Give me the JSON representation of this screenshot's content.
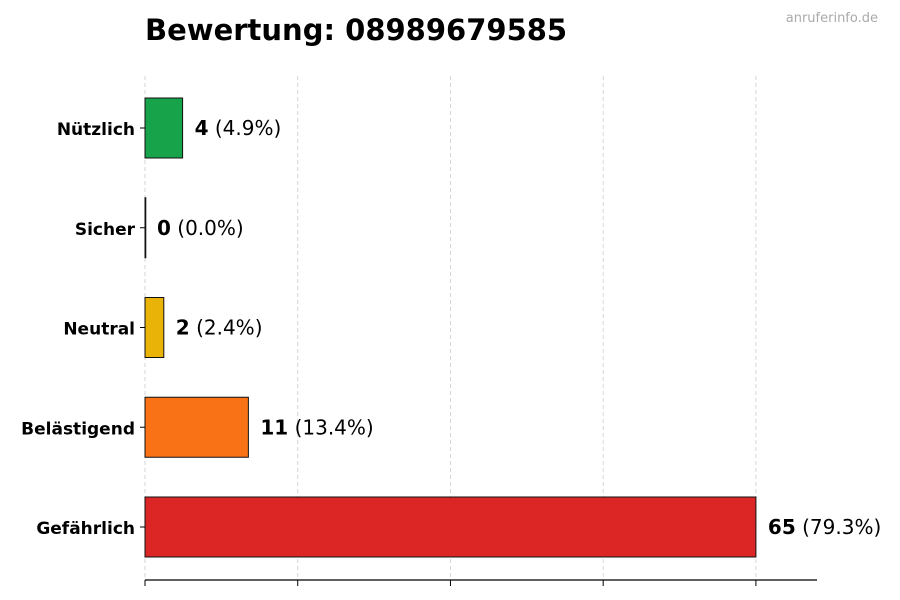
{
  "watermark": "anruferinfo.de",
  "chart_data": {
    "type": "bar",
    "orientation": "horizontal",
    "title": "Bewertung: 08989679585",
    "xlabel": "",
    "ylabel": "",
    "xlim": [
      0,
      71.5
    ],
    "grid": "vertical dashed",
    "tick_labels_shown": false,
    "categories": [
      "Nützlich",
      "Sicher",
      "Neutral",
      "Belästigend",
      "Gefährlich"
    ],
    "values": [
      4,
      0,
      2,
      11,
      65
    ],
    "percent_labels": [
      "(4.9%)",
      "(0.0%)",
      "(2.4%)",
      "(13.4%)",
      "(79.3%)"
    ],
    "colors": [
      "#16a34a",
      "#6b7280",
      "#eab308",
      "#f97316",
      "#dc2626"
    ]
  }
}
